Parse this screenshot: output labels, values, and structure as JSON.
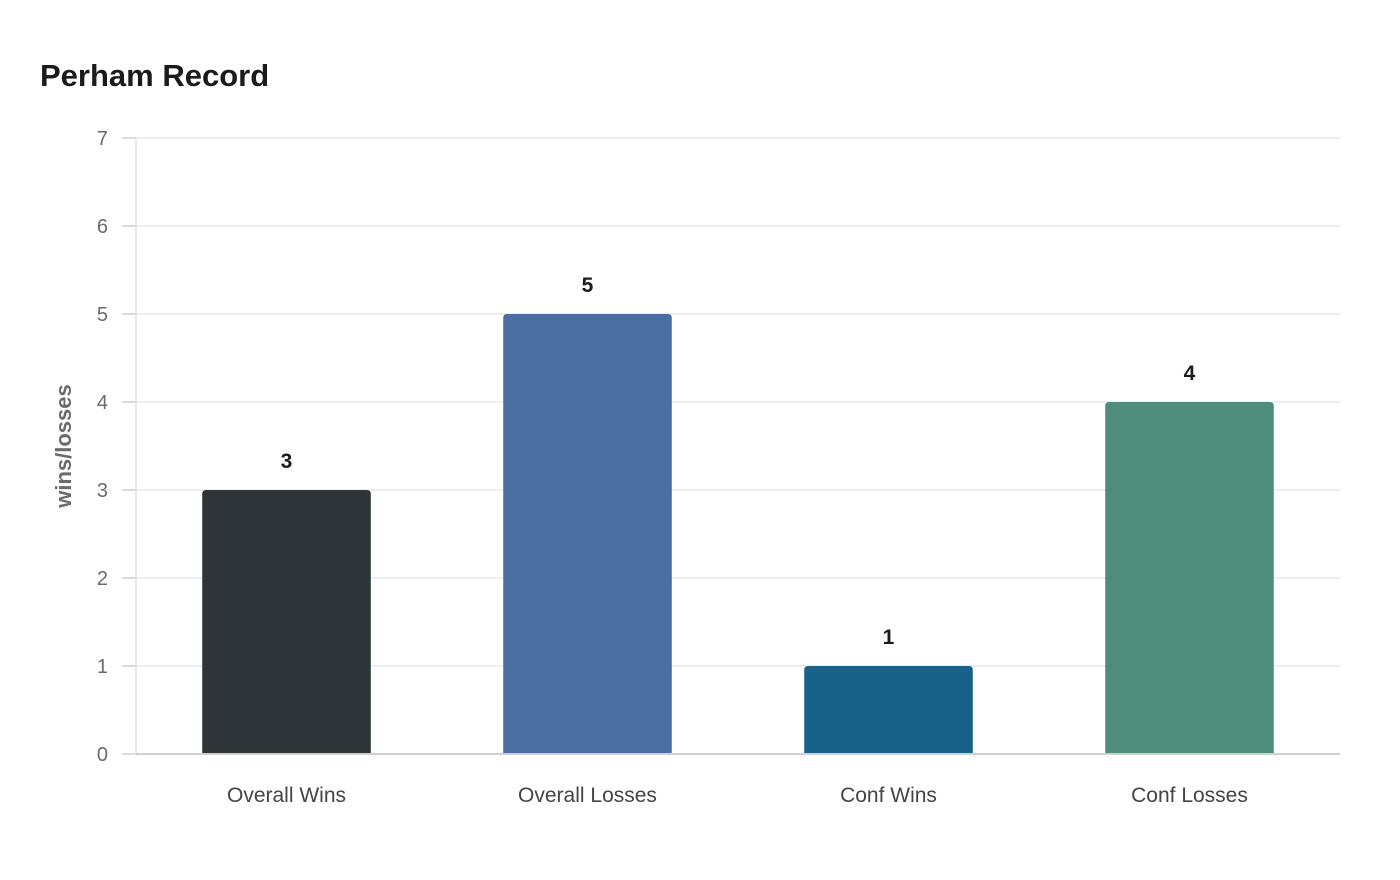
{
  "chart_data": {
    "type": "bar",
    "title": "Perham Record",
    "xlabel": "",
    "ylabel": "wins/losses",
    "categories": [
      "Overall Wins",
      "Overall Losses",
      "Conf Wins",
      "Conf Losses"
    ],
    "values": [
      3,
      5,
      1,
      4
    ],
    "colors": [
      "#2e3538",
      "#4a6ea2",
      "#186189",
      "#4e8d7b"
    ],
    "ylim": [
      0,
      7
    ],
    "yticks": [
      0,
      1,
      2,
      3,
      4,
      5,
      6,
      7
    ],
    "grid": true,
    "legend": "none",
    "data_labels": true
  }
}
